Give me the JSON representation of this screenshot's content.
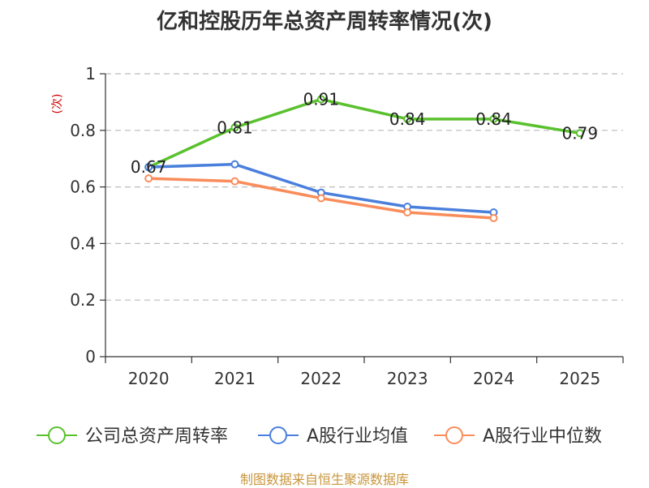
{
  "chart_data": {
    "type": "line",
    "title": "亿和控股历年总资产周转率情况(次)",
    "xlabel": "",
    "ylabel": "(次)",
    "categories": [
      "2020",
      "2021",
      "2022",
      "2023",
      "2024",
      "2025"
    ],
    "ylim": [
      0,
      1
    ],
    "yticks": [
      0,
      0.2,
      0.4,
      0.6,
      0.8,
      1
    ],
    "ytick_labels": [
      "0",
      "0.2",
      "0.4",
      "0.6",
      "0.8",
      "1"
    ],
    "grid": true,
    "legend_position": "bottom",
    "series": [
      {
        "name": "公司总资产周转率",
        "color": "#5ac12e",
        "values": [
          0.67,
          0.81,
          0.91,
          0.84,
          0.84,
          0.79
        ],
        "labels": [
          "0.67",
          "0.81",
          "0.91",
          "0.84",
          "0.84",
          "0.79"
        ]
      },
      {
        "name": "A股行业均值",
        "color": "#4a7fdc",
        "values": [
          0.67,
          0.68,
          0.58,
          0.53,
          0.51,
          null
        ]
      },
      {
        "name": "A股行业中位数",
        "color": "#f98c5a",
        "values": [
          0.63,
          0.62,
          0.56,
          0.51,
          0.49,
          null
        ]
      }
    ]
  },
  "source": "制图数据来自恒生聚源数据库"
}
